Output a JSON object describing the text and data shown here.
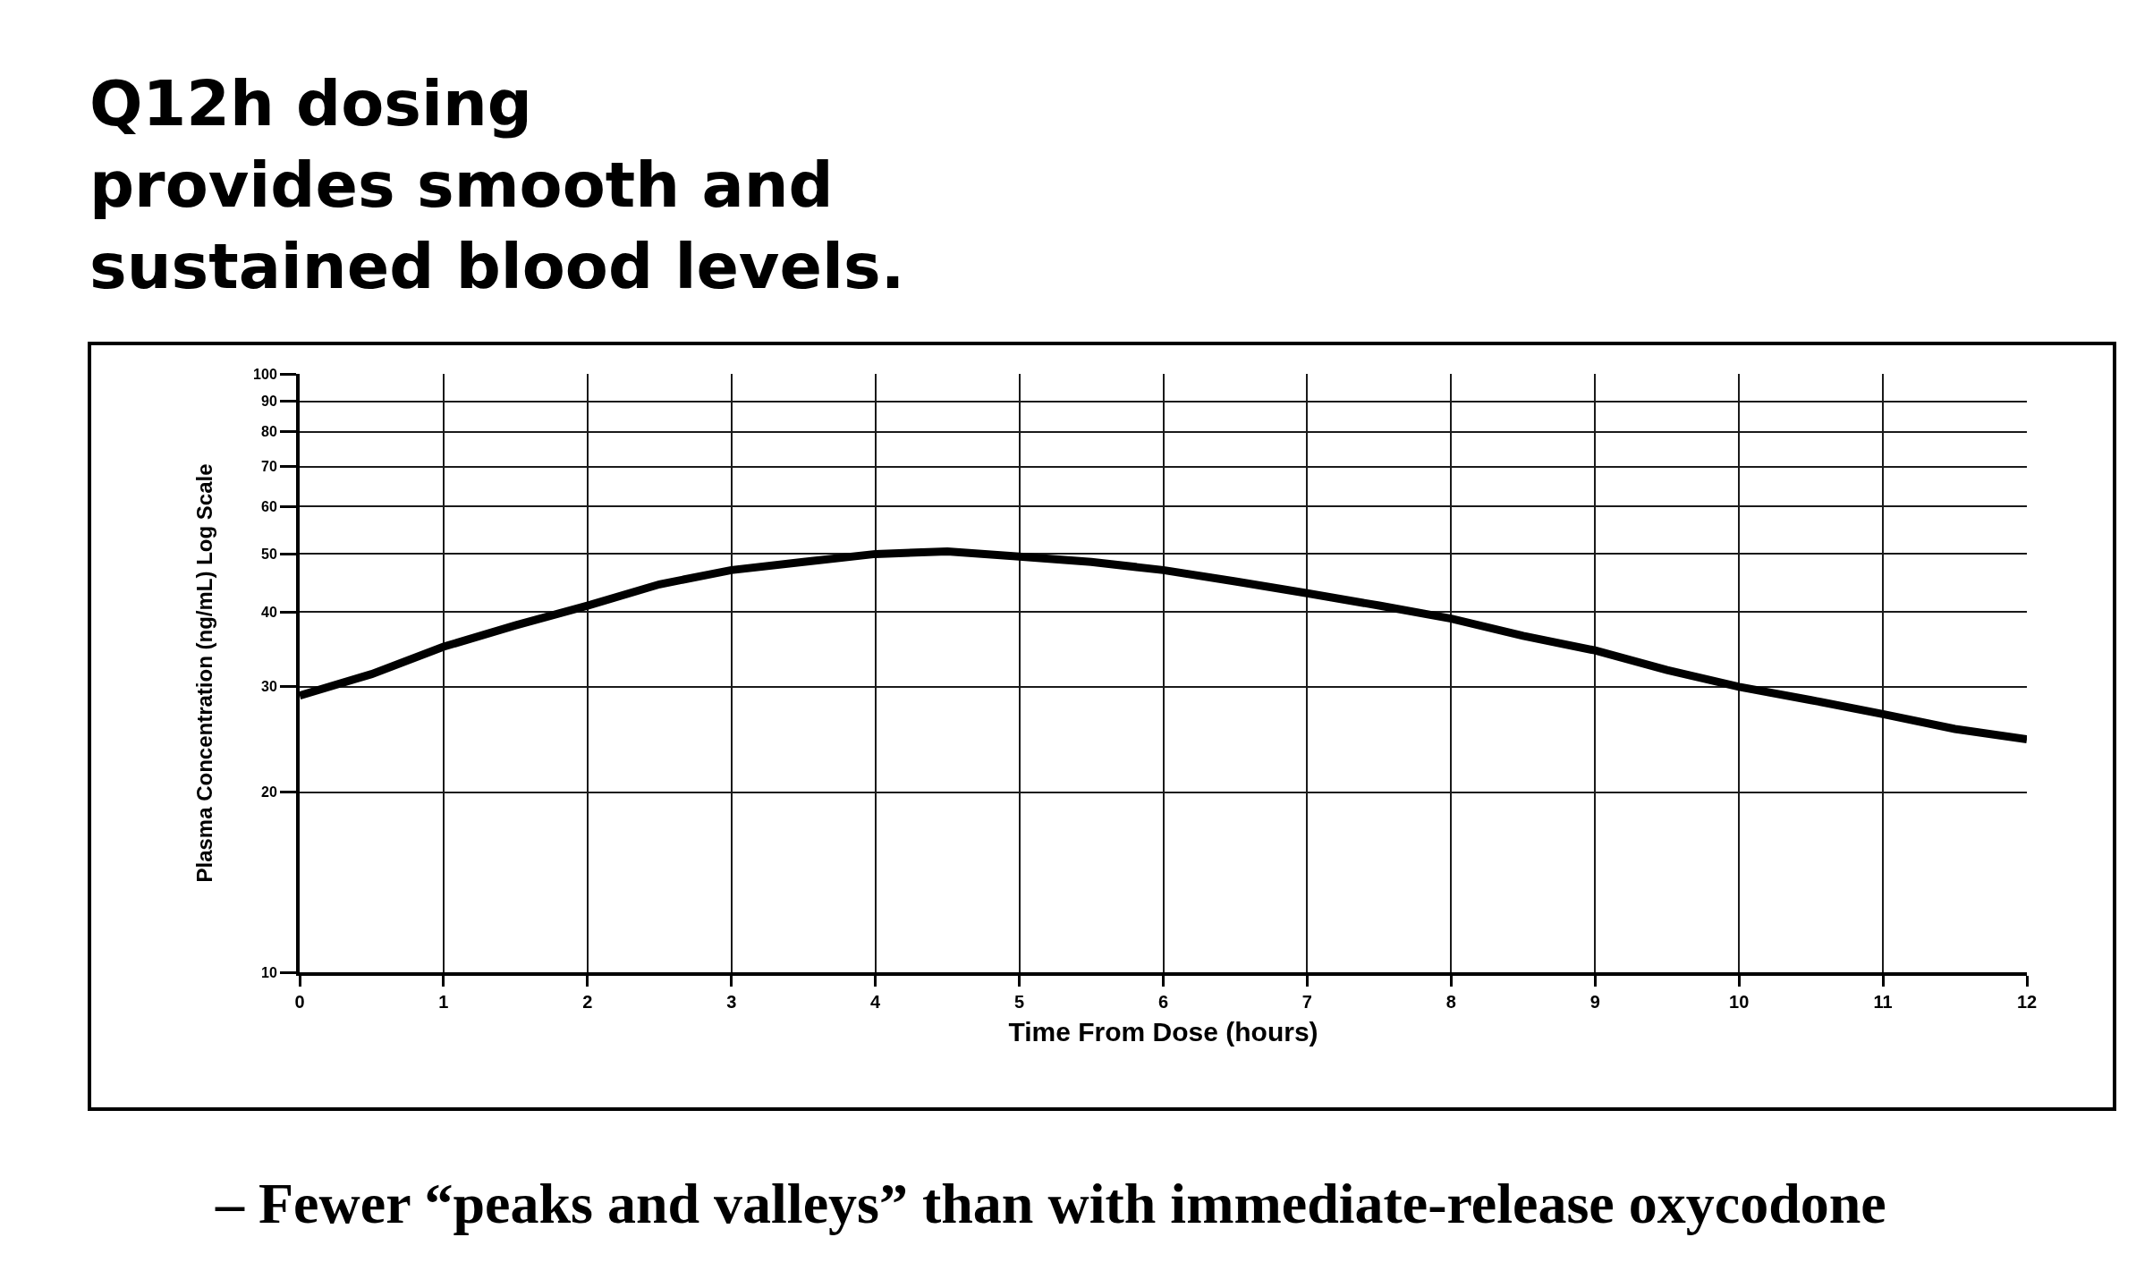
{
  "chart_data": {
    "type": "line",
    "title": "Q12h dosing\nprovides smooth and\nsustained blood levels.",
    "xlabel": "Time From Dose (hours)",
    "ylabel": "Plasma Concentration (ng/mL) Log Scale",
    "x": [
      0,
      0.5,
      1,
      1.5,
      2,
      2.5,
      3,
      3.5,
      4,
      4.5,
      5,
      5.5,
      6,
      6.5,
      7,
      7.5,
      8,
      8.5,
      9,
      9.5,
      10,
      10.5,
      11,
      11.5,
      12
    ],
    "series": [
      {
        "color": "#000000",
        "values": [
          29,
          31.5,
          35,
          38,
          41,
          44.5,
          47,
          48.5,
          50,
          50.5,
          49.5,
          48.5,
          47,
          45,
          43,
          41,
          39,
          36.5,
          34.5,
          32,
          30,
          28.5,
          27,
          25.5,
          24.5
        ]
      }
    ],
    "xlim": [
      0,
      12
    ],
    "xticks": [
      0,
      1,
      2,
      3,
      4,
      5,
      6,
      7,
      8,
      9,
      10,
      11,
      12
    ],
    "ylim": [
      10,
      100
    ],
    "yticks": [
      10,
      20,
      30,
      40,
      50,
      60,
      70,
      80,
      90,
      100
    ],
    "log": true,
    "grid": true,
    "line_style": "solid",
    "annotations": [
      "– Fewer “peaks and valleys” than with immediate-release oxycodone"
    ]
  }
}
